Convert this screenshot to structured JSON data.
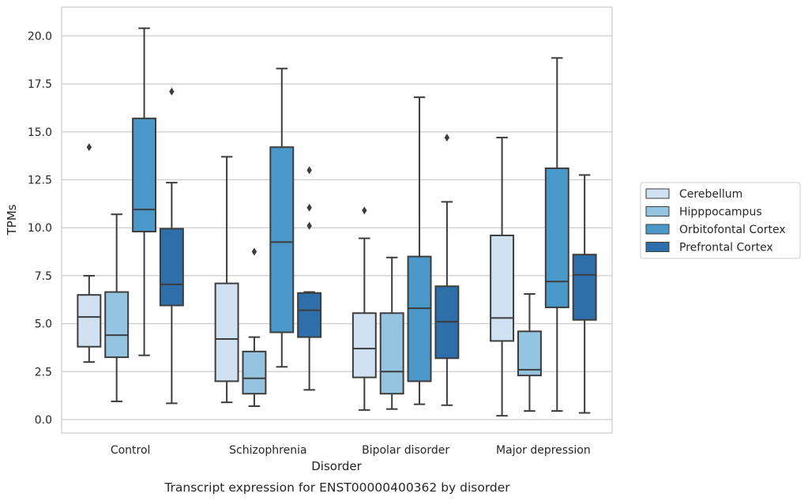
{
  "chart_data": {
    "type": "box",
    "title": "",
    "caption": "Transcript expression for ENST00000400362 by disorder",
    "xlabel": "Disorder",
    "ylabel": "TPMs",
    "ylim": [
      -0.7,
      21.5
    ],
    "yticks": [
      "0.0",
      "2.5",
      "5.0",
      "7.5",
      "10.0",
      "12.5",
      "15.0",
      "17.5",
      "20.0"
    ],
    "ytick_values": [
      0,
      2.5,
      5,
      7.5,
      10,
      12.5,
      15,
      17.5,
      20
    ],
    "grid": true,
    "legend_position": "right",
    "categories": [
      "Control",
      "Schizophrenia",
      "Bipolar disorder",
      "Major depression"
    ],
    "series": [
      {
        "name": "Cerebellum",
        "color": "#d0e1f2",
        "boxes": [
          {
            "whislo": 3.0,
            "q1": 3.8,
            "med": 5.35,
            "q3": 6.5,
            "whishi": 7.5,
            "fliers": [
              14.2
            ]
          },
          {
            "whislo": 0.9,
            "q1": 2.0,
            "med": 4.2,
            "q3": 7.1,
            "whishi": 13.7,
            "fliers": []
          },
          {
            "whislo": 0.5,
            "q1": 2.2,
            "med": 3.7,
            "q3": 5.55,
            "whishi": 9.45,
            "fliers": [
              10.9
            ]
          },
          {
            "whislo": 0.2,
            "q1": 4.1,
            "med": 5.3,
            "q3": 9.6,
            "whishi": 14.7,
            "fliers": []
          }
        ]
      },
      {
        "name": "Hipppocampus",
        "color": "#94c4df",
        "boxes": [
          {
            "whislo": 0.95,
            "q1": 3.25,
            "med": 4.4,
            "q3": 6.65,
            "whishi": 10.7,
            "fliers": []
          },
          {
            "whislo": 0.7,
            "q1": 1.35,
            "med": 2.15,
            "q3": 3.55,
            "whishi": 4.3,
            "fliers": [
              8.75
            ]
          },
          {
            "whislo": 0.55,
            "q1": 1.35,
            "med": 2.5,
            "q3": 5.55,
            "whishi": 8.45,
            "fliers": []
          },
          {
            "whislo": 0.45,
            "q1": 2.3,
            "med": 2.6,
            "q3": 4.6,
            "whishi": 6.55,
            "fliers": []
          }
        ]
      },
      {
        "name": "Orbitofontal Cortex",
        "color": "#4a98c9",
        "boxes": [
          {
            "whislo": 3.35,
            "q1": 9.8,
            "med": 10.95,
            "q3": 15.7,
            "whishi": 20.4,
            "fliers": []
          },
          {
            "whislo": 2.75,
            "q1": 4.55,
            "med": 9.25,
            "q3": 14.2,
            "whishi": 18.3,
            "fliers": []
          },
          {
            "whislo": 0.8,
            "q1": 2.0,
            "med": 5.8,
            "q3": 8.5,
            "whishi": 16.8,
            "fliers": []
          },
          {
            "whislo": 0.45,
            "q1": 5.85,
            "med": 7.2,
            "q3": 13.1,
            "whishi": 18.85,
            "fliers": []
          }
        ]
      },
      {
        "name": "Prefrontal Cortex",
        "color": "#2e6fab",
        "boxes": [
          {
            "whislo": 0.85,
            "q1": 5.95,
            "med": 7.05,
            "q3": 9.95,
            "whishi": 12.35,
            "fliers": [
              17.1
            ]
          },
          {
            "whislo": 1.55,
            "q1": 4.3,
            "med": 5.7,
            "q3": 6.6,
            "whishi": 6.65,
            "fliers": [
              13.0,
              11.05,
              10.1
            ]
          },
          {
            "whislo": 0.75,
            "q1": 3.2,
            "med": 5.1,
            "q3": 6.95,
            "whishi": 11.35,
            "fliers": [
              14.7
            ]
          },
          {
            "whislo": 0.35,
            "q1": 5.2,
            "med": 7.55,
            "q3": 8.6,
            "whishi": 12.75,
            "fliers": []
          }
        ]
      }
    ]
  }
}
